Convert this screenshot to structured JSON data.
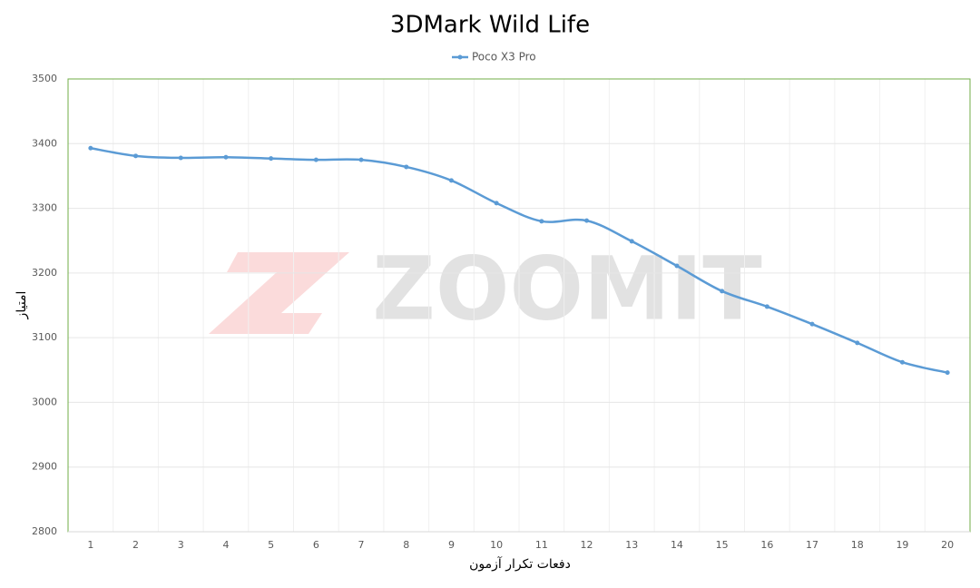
{
  "chart_data": {
    "type": "line",
    "title": "3DMark Wild Life",
    "watermark": "ZOOMIT",
    "x_label": "دفعات تکرار آزمون",
    "y_label": "امتیاز",
    "categories": [
      "1",
      "2",
      "3",
      "4",
      "5",
      "6",
      "7",
      "8",
      "9",
      "10",
      "11",
      "12",
      "13",
      "14",
      "15",
      "16",
      "17",
      "18",
      "19",
      "20"
    ],
    "series": [
      {
        "name": "Poco X3 Pro",
        "color": "#5b9bd5",
        "values": [
          3393,
          3381,
          3378,
          3379,
          3377,
          3375,
          3375,
          3364,
          3343,
          3308,
          3280,
          3281,
          3249,
          3211,
          3172,
          3148,
          3121,
          3092,
          3062,
          3046
        ]
      }
    ],
    "ylim": [
      2800,
      3500
    ],
    "yticks": [
      2800,
      2900,
      3000,
      3100,
      3200,
      3300,
      3400,
      3500
    ],
    "grid": true,
    "legend": "top"
  }
}
